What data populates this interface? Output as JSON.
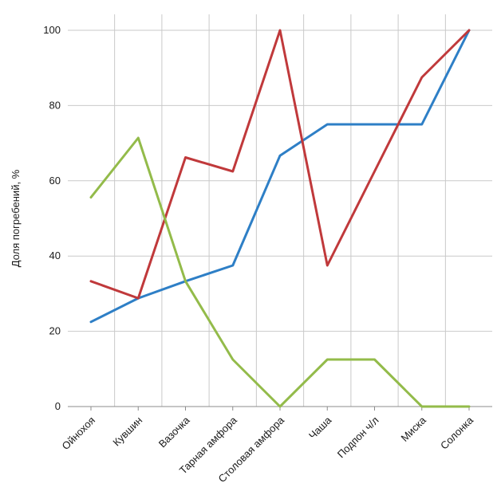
{
  "chart_data": {
    "type": "line",
    "ylabel": "Доля погребений, %",
    "xlabel": "",
    "ylim": [
      0,
      100
    ],
    "yticks": [
      0,
      20,
      40,
      60,
      80,
      100
    ],
    "grid": true,
    "categories": [
      "Ойнохоя",
      "Кувшин",
      "Вазочка",
      "Тарная амфора",
      "Столовая амфора",
      "Чаша",
      "Подпон ч/л",
      "Миска",
      "Солонка"
    ],
    "series": [
      {
        "color": "#2e7fc6",
        "values": [
          22.5,
          28.8,
          33.3,
          37.5,
          66.7,
          75,
          75,
          75,
          100
        ]
      },
      {
        "color": "#c0393b",
        "values": [
          33.3,
          28.8,
          66.2,
          62.5,
          100,
          37.5,
          62.5,
          87.5,
          100
        ]
      },
      {
        "color": "#93bb4a",
        "values": [
          55.6,
          71.4,
          33.3,
          12.5,
          0,
          12.5,
          12.5,
          0,
          0
        ]
      }
    ]
  }
}
